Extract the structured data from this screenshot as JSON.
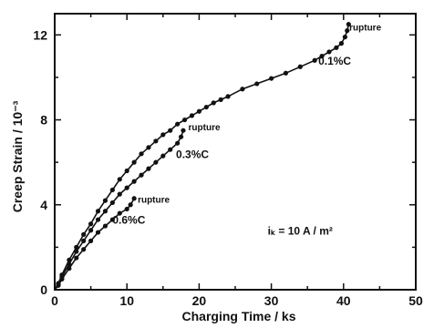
{
  "chart_data": {
    "type": "line",
    "xlabel": "Charging Time  /  ks",
    "ylabel": "Creep Strain  /  10⁻³",
    "xlim": [
      0,
      50
    ],
    "ylim": [
      0,
      13
    ],
    "xticks": [
      "0",
      "10",
      "20",
      "30",
      "40",
      "50"
    ],
    "yticks": [
      "0",
      "4",
      "8",
      "12"
    ],
    "grid": false,
    "legend": "none",
    "series": [
      {
        "name": "0.1%C",
        "end_label": "rupture",
        "x": [
          0,
          0.5,
          1,
          2,
          3,
          4,
          5,
          6,
          7,
          8,
          9,
          10,
          11,
          12,
          13,
          14,
          15,
          16,
          17,
          18,
          19,
          20,
          21,
          22,
          23,
          24,
          26,
          28,
          30,
          32,
          34,
          36,
          37,
          38,
          39,
          39.7,
          40.2,
          40.5,
          40.7
        ],
        "y": [
          0,
          0.3,
          0.7,
          1.4,
          2.0,
          2.6,
          3.1,
          3.7,
          4.2,
          4.7,
          5.2,
          5.6,
          6.0,
          6.4,
          6.7,
          7.0,
          7.3,
          7.5,
          7.8,
          8.0,
          8.2,
          8.4,
          8.6,
          8.8,
          8.95,
          9.1,
          9.45,
          9.7,
          9.95,
          10.2,
          10.5,
          10.8,
          11.0,
          11.2,
          11.4,
          11.6,
          11.9,
          12.2,
          12.5
        ]
      },
      {
        "name": "0.3%C",
        "end_label": "rupture",
        "x": [
          0,
          0.5,
          1,
          2,
          3,
          4,
          5,
          6,
          7,
          8,
          9,
          10,
          11,
          12,
          13,
          14,
          15,
          16,
          17,
          17.5,
          17.8
        ],
        "y": [
          0,
          0.25,
          0.6,
          1.2,
          1.8,
          2.3,
          2.8,
          3.3,
          3.7,
          4.1,
          4.5,
          4.8,
          5.1,
          5.4,
          5.7,
          6.0,
          6.3,
          6.6,
          6.9,
          7.2,
          7.5
        ]
      },
      {
        "name": "0.6%C",
        "end_label": "rupture",
        "x": [
          0,
          0.5,
          1,
          2,
          3,
          4,
          5,
          6,
          7,
          8,
          9,
          10,
          10.5,
          11
        ],
        "y": [
          0,
          0.2,
          0.5,
          1.0,
          1.5,
          1.9,
          2.3,
          2.7,
          3.0,
          3.3,
          3.6,
          3.8,
          4.0,
          4.3
        ]
      }
    ],
    "annotations": [
      {
        "text": "rupture",
        "x": 40.8,
        "y": 12.2
      },
      {
        "text": "0.1%C",
        "x": 36.5,
        "y": 10.6
      },
      {
        "text": "rupture",
        "x": 18.5,
        "y": 7.5
      },
      {
        "text": "0.3%C",
        "x": 16.8,
        "y": 6.2
      },
      {
        "text": "rupture",
        "x": 11.5,
        "y": 4.1
      },
      {
        "text": "0.6%C",
        "x": 8.0,
        "y": 3.1
      },
      {
        "text": "iₖ = 10 A / m²",
        "x": 29.5,
        "y": 2.6
      }
    ]
  }
}
